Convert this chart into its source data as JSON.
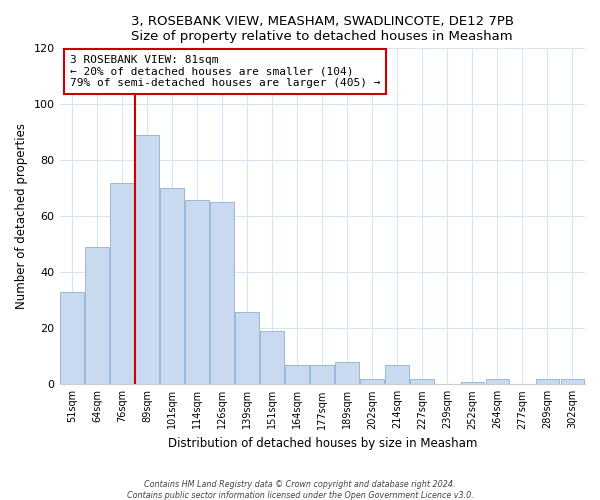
{
  "title": "3, ROSEBANK VIEW, MEASHAM, SWADLINCOTE, DE12 7PB",
  "subtitle": "Size of property relative to detached houses in Measham",
  "xlabel": "Distribution of detached houses by size in Measham",
  "ylabel": "Number of detached properties",
  "bar_labels": [
    "51sqm",
    "64sqm",
    "76sqm",
    "89sqm",
    "101sqm",
    "114sqm",
    "126sqm",
    "139sqm",
    "151sqm",
    "164sqm",
    "177sqm",
    "189sqm",
    "202sqm",
    "214sqm",
    "227sqm",
    "239sqm",
    "252sqm",
    "264sqm",
    "277sqm",
    "289sqm",
    "302sqm"
  ],
  "bar_values": [
    33,
    49,
    72,
    89,
    70,
    66,
    65,
    26,
    19,
    7,
    7,
    8,
    2,
    7,
    2,
    0,
    1,
    2,
    0,
    2,
    2
  ],
  "bar_color": "#c8d9f0",
  "bar_edge_color": "#9ab8d8",
  "vline_color": "#cc0000",
  "annotation_line1": "3 ROSEBANK VIEW: 81sqm",
  "annotation_line2": "← 20% of detached houses are smaller (104)",
  "annotation_line3": "79% of semi-detached houses are larger (405) →",
  "annotation_box_edgecolor": "#cc0000",
  "ylim": [
    0,
    120
  ],
  "yticks": [
    0,
    20,
    40,
    60,
    80,
    100,
    120
  ],
  "footer1": "Contains HM Land Registry data © Crown copyright and database right 2024.",
  "footer2": "Contains public sector information licensed under the Open Government Licence v3.0.",
  "background_color": "#ffffff",
  "grid_color": "#d8e4f0"
}
